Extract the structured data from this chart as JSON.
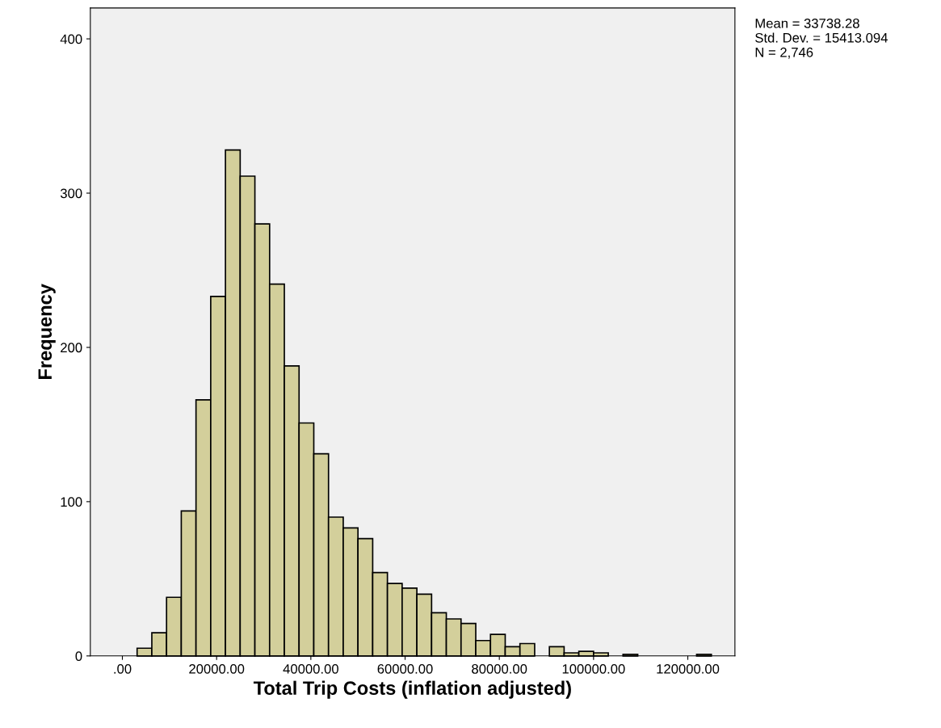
{
  "chart_data": {
    "type": "histogram",
    "xlabel": "Total Trip Costs (inflation adjusted)",
    "ylabel": "Frequency",
    "bins": [
      3125,
      6250,
      9375,
      12500,
      15625,
      18750,
      21875,
      25000,
      28125,
      31250,
      34375,
      37500,
      40625,
      43750,
      46875,
      50000,
      53125,
      56250,
      59375,
      62500,
      65625,
      68750,
      71875,
      75000,
      78125,
      81250,
      84375,
      87500,
      90625,
      93750,
      96875,
      100000,
      103125,
      106250,
      109375,
      112500,
      115625,
      118750,
      121875,
      125000
    ],
    "values": [
      5,
      15,
      38,
      94,
      166,
      233,
      328,
      311,
      280,
      241,
      188,
      151,
      131,
      90,
      83,
      76,
      54,
      47,
      44,
      40,
      28,
      24,
      21,
      10,
      14,
      6,
      8,
      0,
      6,
      2,
      3,
      2,
      0,
      1,
      0,
      0,
      0,
      0,
      1
    ],
    "color": "#d3cf9b",
    "xlim": [
      -6800,
      130000
    ],
    "xticks": [
      {
        "value": 0,
        "label": ".00"
      },
      {
        "value": 20000,
        "label": "20000.00"
      },
      {
        "value": 40000,
        "label": "40000.00"
      },
      {
        "value": 60000,
        "label": "60000.00"
      },
      {
        "value": 80000,
        "label": "80000.00"
      },
      {
        "value": 100000,
        "label": "100000.00"
      },
      {
        "value": 120000,
        "label": "120000.00"
      }
    ],
    "ylim": [
      0,
      420
    ],
    "yticks": [
      0,
      100,
      200,
      300,
      400
    ],
    "grid": false,
    "legend": false,
    "annotations": [
      "Mean = 33738.28\nStd. Dev. = 15413.094\nN = 2,746"
    ]
  }
}
